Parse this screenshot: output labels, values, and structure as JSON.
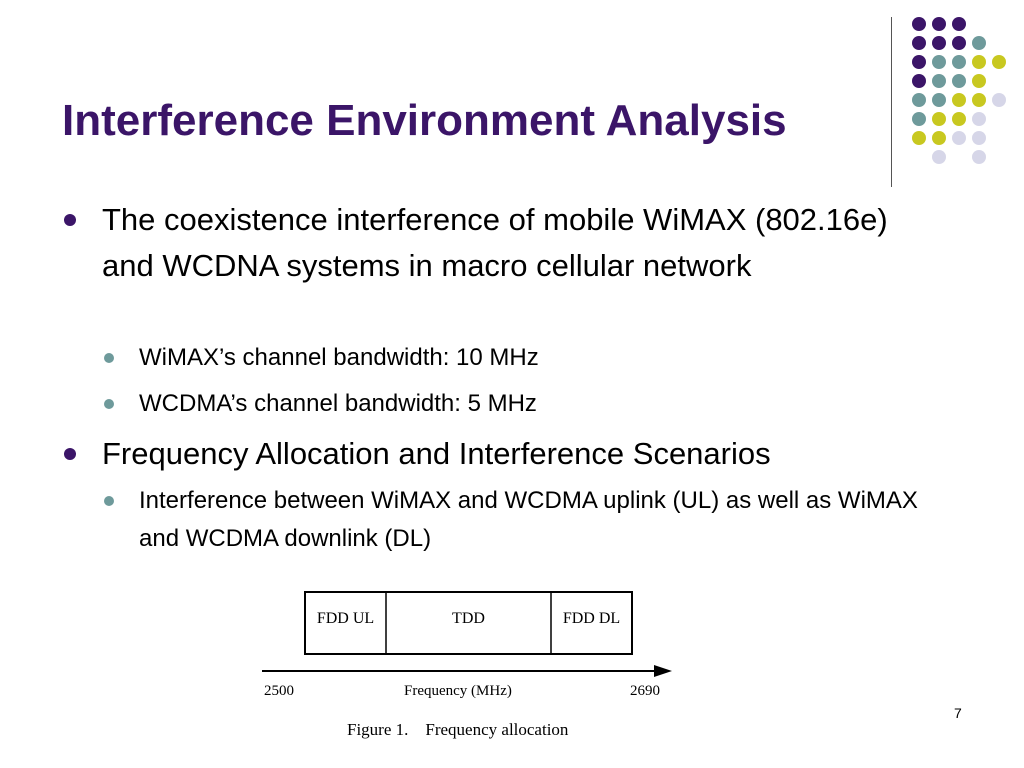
{
  "slide": {
    "title": "Interference Environment Analysis",
    "page_number": "7"
  },
  "bullets": [
    {
      "text": "The coexistence interference of mobile WiMAX (802.16e) and WCDNA systems in macro cellular network",
      "sub": [
        "WiMAX’s channel bandwidth: 10 MHz",
        "WCDMA’s channel bandwidth: 5 MHz"
      ]
    },
    {
      "text": "Frequency Allocation and Interference Scenarios",
      "sub": [
        "Interference between WiMAX and WCDMA uplink (UL) as well as WiMAX and WCDMA downlink (DL)"
      ]
    }
  ],
  "figure": {
    "segments": [
      "FDD UL",
      "TDD",
      "FDD DL"
    ],
    "axis_start": "2500",
    "axis_label": "Frequency (MHz)",
    "axis_end": "2690",
    "caption_number": "Figure 1.",
    "caption_text": "Frequency allocation"
  },
  "colors": {
    "title": "#3b1568",
    "purple": "#3b1568",
    "teal": "#6e9a9b",
    "olive": "#c8c820",
    "lavender": "#d6d6e8"
  }
}
